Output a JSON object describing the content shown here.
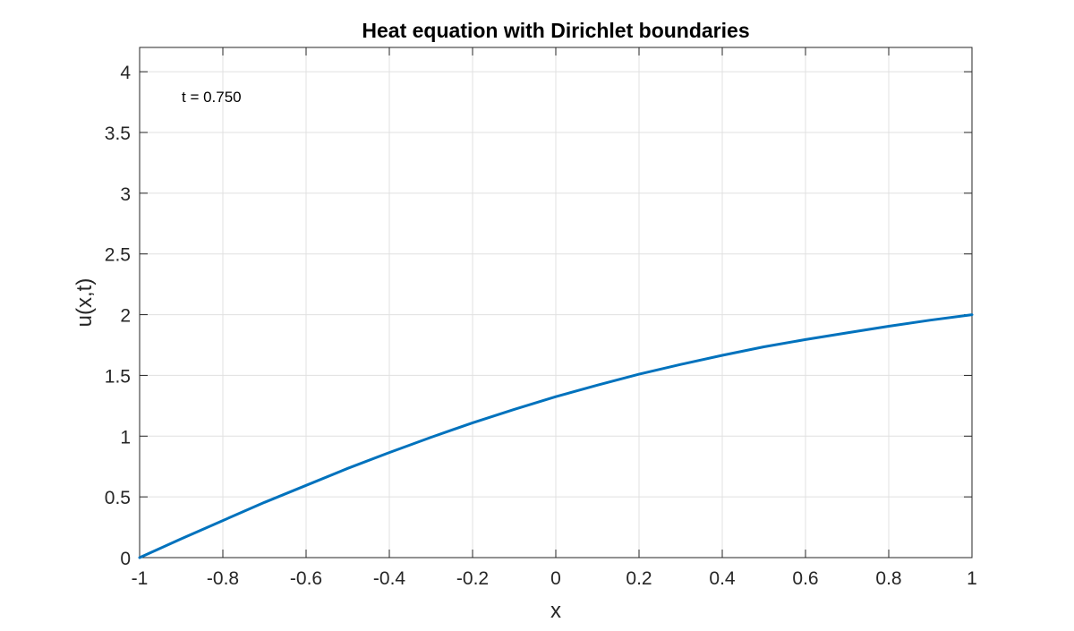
{
  "chart_data": {
    "type": "line",
    "title": "Heat equation with Dirichlet boundaries",
    "xlabel": "x",
    "ylabel": "u(x,t)",
    "xlim": [
      -1,
      1
    ],
    "ylim": [
      0,
      4.2
    ],
    "xticks": [
      -1,
      -0.8,
      -0.6,
      -0.4,
      -0.2,
      0,
      0.2,
      0.4,
      0.6,
      0.8,
      1
    ],
    "xtick_labels": [
      "-1",
      "-0.8",
      "-0.6",
      "-0.4",
      "-0.2",
      "0",
      "0.2",
      "0.4",
      "0.6",
      "0.8",
      "1"
    ],
    "yticks": [
      0,
      0.5,
      1,
      1.5,
      2,
      2.5,
      3,
      3.5,
      4
    ],
    "ytick_labels": [
      "0",
      "0.5",
      "1",
      "1.5",
      "2",
      "2.5",
      "3",
      "3.5",
      "4"
    ],
    "grid": true,
    "annotation": "t = 0.750",
    "series": [
      {
        "color": "#0072BD",
        "x": [
          -1,
          -0.9,
          -0.8,
          -0.7,
          -0.6,
          -0.5,
          -0.4,
          -0.3,
          -0.2,
          -0.1,
          0,
          0.1,
          0.2,
          0.3,
          0.4,
          0.5,
          0.6,
          0.7,
          0.8,
          0.9,
          1
        ],
        "y": [
          0,
          0.155,
          0.305,
          0.455,
          0.595,
          0.735,
          0.865,
          0.99,
          1.11,
          1.22,
          1.325,
          1.42,
          1.51,
          1.59,
          1.665,
          1.735,
          1.795,
          1.85,
          1.905,
          1.955,
          2.0
        ]
      }
    ]
  }
}
